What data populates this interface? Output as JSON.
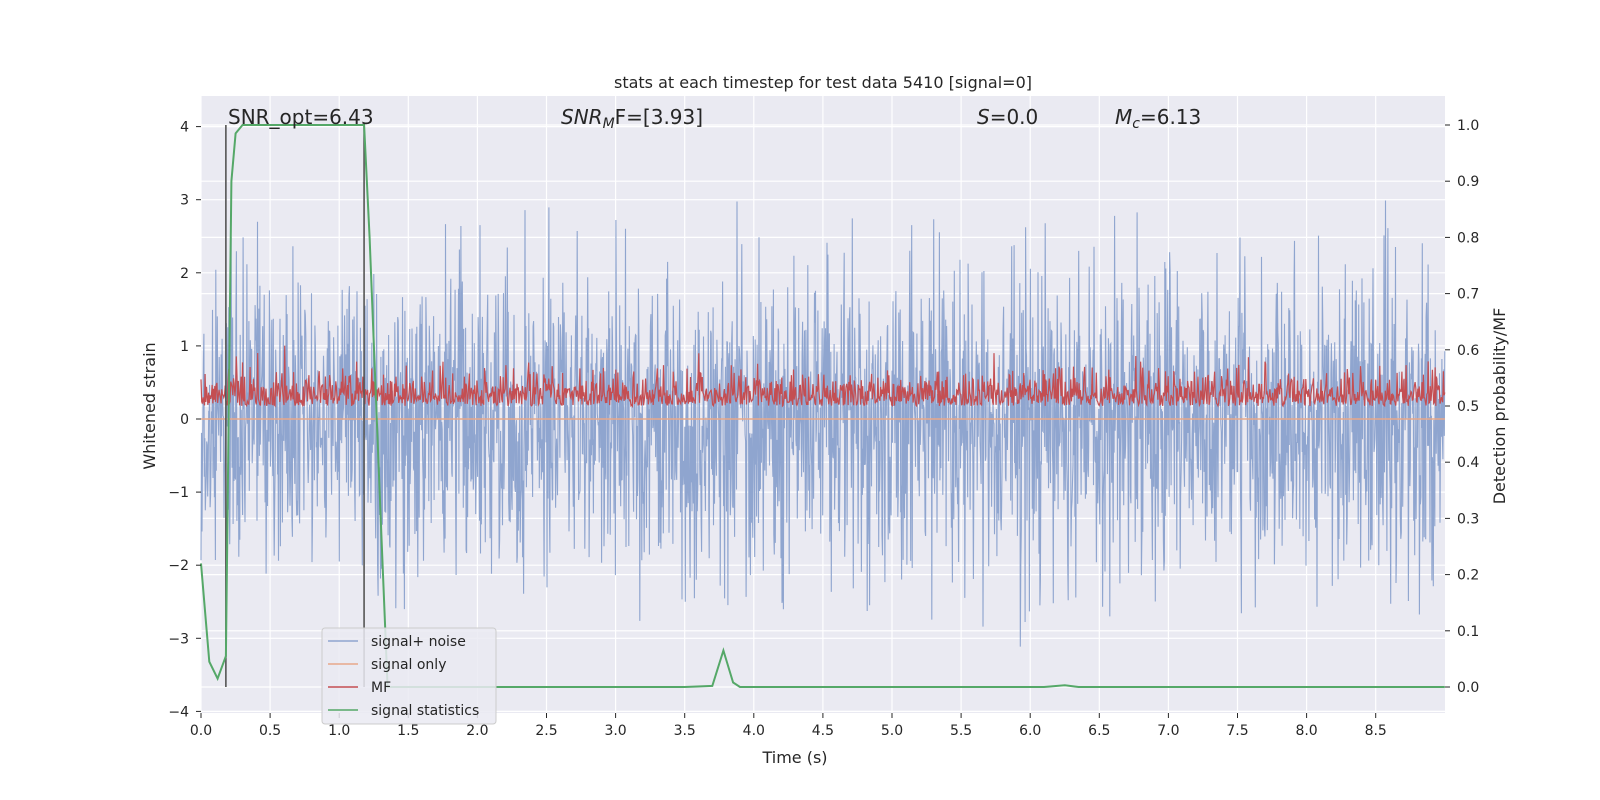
{
  "chart_data": {
    "type": "line",
    "title": "stats at each timestep for test data 5410 [signal=0]",
    "xlabel": "Time (s)",
    "ylabel_left": "Whitened strain",
    "ylabel_right": "Detection probability/MF",
    "xlim": [
      0.0,
      9.0
    ],
    "ylim_left": [
      -4.2,
      4.4
    ],
    "ylim_right": [
      -0.045,
      1.045
    ],
    "x_ticks": [
      "0.0",
      "0.5",
      "1.0",
      "1.5",
      "2.0",
      "2.5",
      "3.0",
      "3.5",
      "4.0",
      "4.5",
      "5.0",
      "5.5",
      "6.0",
      "6.5",
      "7.0",
      "7.5",
      "8.0",
      "8.5"
    ],
    "y_ticks_left": [
      "4",
      "3",
      "2",
      "1",
      "0",
      "−1",
      "−2",
      "−3",
      "−4"
    ],
    "y_ticks_right": [
      "1.0",
      "0.9",
      "0.8",
      "0.7",
      "0.6",
      "0.5",
      "0.4",
      "0.3",
      "0.2",
      "0.1",
      "0.0"
    ],
    "grid": true,
    "legend_position": "lower-left",
    "annotations": {
      "snr_opt": "SNR_opt=6.43",
      "snr_mf_base": "SNR",
      "snr_mf_sub": "M",
      "snr_mf_rest": "F=[3.93]",
      "s_base": "S",
      "s_rest": "=0.0",
      "mc_base": "M",
      "mc_sub": "c",
      "mc_rest": "=6.13"
    },
    "series": [
      {
        "name": "signal+ noise",
        "axis": "left",
        "color": "#8fa5cf",
        "style": "noise",
        "approx_range": [
          -3.6,
          4.0
        ]
      },
      {
        "name": "signal only",
        "axis": "left",
        "color": "#e8a88a",
        "style": "flat",
        "value": 0.0
      },
      {
        "name": "MF",
        "axis": "right",
        "color": "#c44e52",
        "style": "band",
        "approx_range": [
          0.47,
          0.6
        ]
      },
      {
        "name": "signal statistics",
        "axis": "right",
        "color": "#55a868",
        "style": "line",
        "x": [
          0.0,
          0.06,
          0.12,
          0.18,
          0.22,
          0.25,
          0.3,
          0.6,
          1.0,
          1.18,
          1.22,
          1.3,
          1.35,
          3.5,
          3.7,
          3.78,
          3.85,
          3.9,
          6.1,
          6.25,
          6.35,
          9.0
        ],
        "y": [
          0.22,
          0.045,
          0.015,
          0.055,
          0.9,
          0.985,
          1.0,
          1.0,
          1.0,
          1.0,
          0.8,
          0.3,
          0.0,
          0.0,
          0.002,
          0.065,
          0.008,
          0.0,
          0.0,
          0.003,
          0.0,
          0.0
        ]
      }
    ],
    "vertical_lines": [
      0.18,
      1.18
    ]
  }
}
